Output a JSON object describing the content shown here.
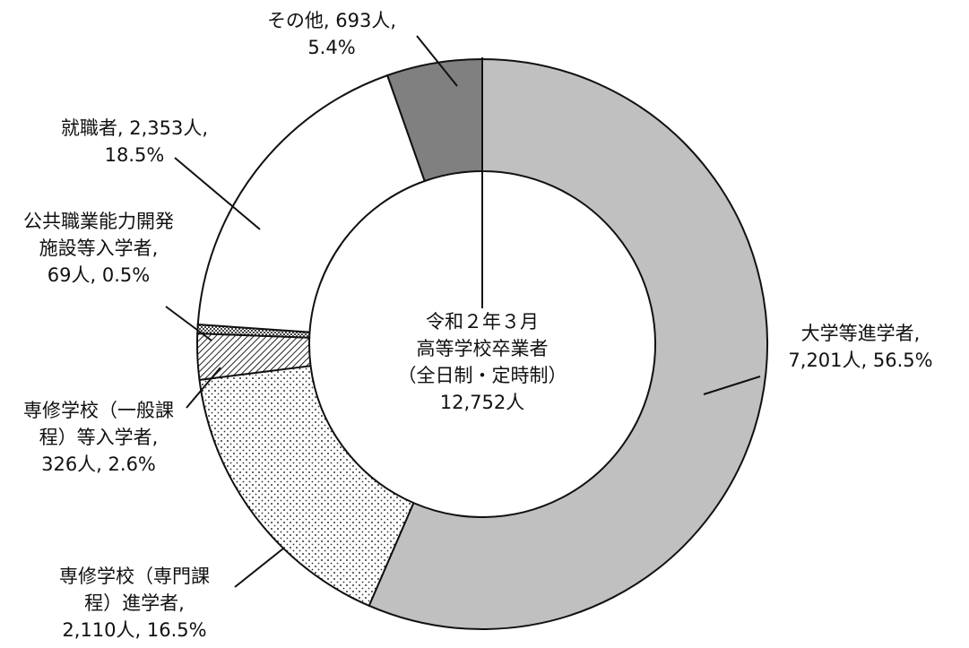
{
  "chart_data": {
    "type": "pie",
    "donut": true,
    "center_text": [
      "令和２年３月",
      "高等学校卒業者",
      "（全日制・定時制）",
      "12,752人"
    ],
    "slices": [
      {
        "lines": [
          "大学等進学者,",
          "7,201人, 56.5%"
        ],
        "count": 7201,
        "value": 56.5,
        "color": "#c0c0c0",
        "pattern": "solid"
      },
      {
        "lines": [
          "専修学校（専門課",
          "程）進学者,",
          "2,110人, 16.5%"
        ],
        "count": 2110,
        "value": 16.5,
        "color": "#ffffff",
        "pattern": "dots"
      },
      {
        "lines": [
          "専修学校（一般課",
          "程）等入学者,",
          "326人, 2.6%"
        ],
        "count": 326,
        "value": 2.6,
        "color": "#ffffff",
        "pattern": "hatch"
      },
      {
        "lines": [
          "公共職業能力開発",
          "施設等入学者,",
          "69人, 0.5%"
        ],
        "count": 69,
        "value": 0.5,
        "color": "#ffffff",
        "pattern": "checker"
      },
      {
        "lines": [
          "就職者, 2,353人,",
          "18.5%"
        ],
        "count": 2353,
        "value": 18.5,
        "color": "#ffffff",
        "pattern": "solid"
      },
      {
        "lines": [
          "その他, 693人,",
          "5.4%"
        ],
        "count": 693,
        "value": 5.4,
        "color": "#808080",
        "pattern": "solid"
      }
    ]
  }
}
